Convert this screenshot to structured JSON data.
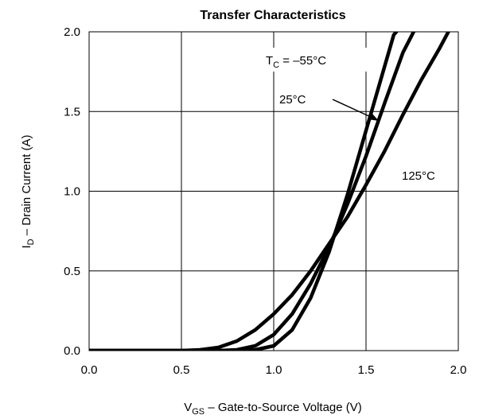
{
  "chart_data": {
    "type": "line",
    "title": "Transfer Characteristics",
    "xlabel": {
      "main": "V",
      "sub": "GS",
      "rest": " –  Gate-to-Source Voltage (V)"
    },
    "ylabel": {
      "main": "I",
      "sub": "D",
      "rest": " –  Drain Current (A)"
    },
    "xlim": [
      0,
      2
    ],
    "ylim": [
      0,
      2
    ],
    "grid": true,
    "x_ticks": [
      "0.0",
      "0.5",
      "1.0",
      "1.5",
      "2.0"
    ],
    "y_ticks": [
      "0.0",
      "0.5",
      "1.0",
      "1.5",
      "2.0"
    ],
    "series": [
      {
        "name": "–55°C",
        "x": [
          0.0,
          0.5,
          0.7,
          0.8,
          0.9,
          1.0,
          1.1,
          1.2,
          1.3,
          1.4,
          1.5,
          1.6,
          1.65,
          1.7
        ],
        "y": [
          0.0,
          0.0,
          0.0,
          0.0,
          0.005,
          0.03,
          0.13,
          0.33,
          0.62,
          0.98,
          1.38,
          1.78,
          1.98,
          2.05
        ]
      },
      {
        "name": "25°C",
        "x": [
          0.0,
          0.5,
          0.7,
          0.8,
          0.9,
          1.0,
          1.1,
          1.2,
          1.3,
          1.4,
          1.5,
          1.6,
          1.7,
          1.78
        ],
        "y": [
          0.0,
          0.0,
          0.0,
          0.005,
          0.03,
          0.1,
          0.23,
          0.42,
          0.65,
          0.92,
          1.22,
          1.55,
          1.87,
          2.05
        ]
      },
      {
        "name": "125°C",
        "x": [
          0.0,
          0.5,
          0.6,
          0.7,
          0.8,
          0.9,
          1.0,
          1.1,
          1.2,
          1.3,
          1.4,
          1.5,
          1.6,
          1.7,
          1.8,
          1.9,
          1.96
        ],
        "y": [
          0.0,
          0.0,
          0.005,
          0.02,
          0.06,
          0.13,
          0.23,
          0.35,
          0.5,
          0.67,
          0.84,
          1.04,
          1.25,
          1.48,
          1.7,
          1.9,
          2.03
        ]
      }
    ],
    "annotations": {
      "tc_label": {
        "main": "T",
        "sub": "C",
        "rest": " = –55°C"
      },
      "t25_label": "25°C",
      "t125_label": "125°C"
    },
    "line_color": "#000000",
    "grid_color": "#000000"
  }
}
